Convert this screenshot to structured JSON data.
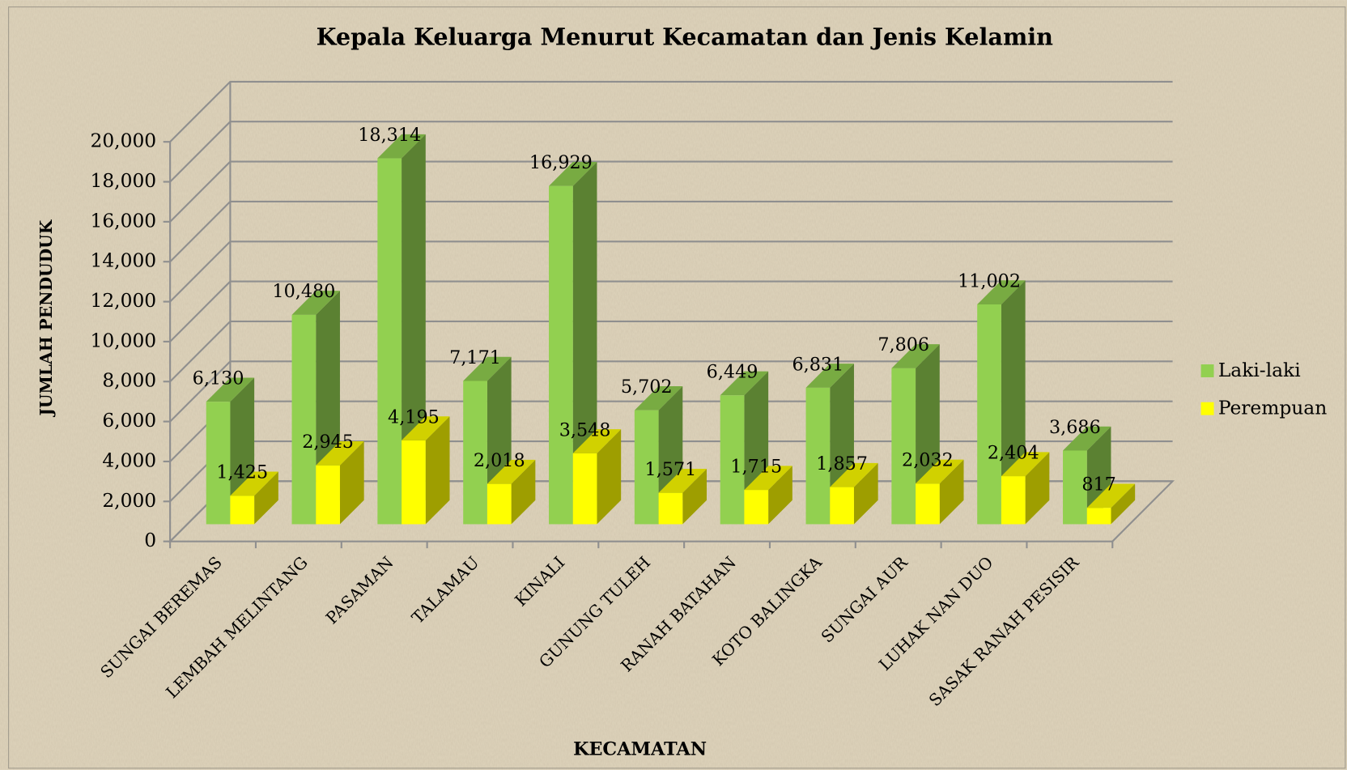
{
  "chart_data": {
    "type": "bar3d",
    "title": "Kepala Keluarga Menurut Kecamatan dan Jenis Kelamin",
    "x_label": "KECAMATAN",
    "y_label": "JUMLAH PENDUDUK",
    "categories": [
      "SUNGAI BEREMAS",
      "LEMBAH MELINTANG",
      "PASAMAN",
      "TALAMAU",
      "KINALI",
      "GUNUNG TULEH",
      "RANAH BATAHAN",
      "KOTO BALINGKA",
      "SUNGAI AUR",
      "LUHAK NAN DUO",
      "SASAK RANAH PESISIR"
    ],
    "series": [
      {
        "name": "Laki-laki",
        "color": "#92d050",
        "values": [
          6130,
          10480,
          18314,
          7171,
          16929,
          5702,
          6449,
          6831,
          7806,
          11002,
          3686
        ],
        "value_labels": [
          "6,130",
          "10,480",
          "18,314",
          "7,171",
          "16,929",
          "5,702",
          "6,449",
          "6,831",
          "7,806",
          "11,002",
          "3,686"
        ]
      },
      {
        "name": "Perempuan",
        "color": "#ffff00",
        "values": [
          1425,
          2945,
          4195,
          2018,
          3548,
          1571,
          1715,
          1857,
          2032,
          2404,
          817
        ],
        "value_labels": [
          "1,425",
          "2,945",
          "4,195",
          "2,018",
          "3,548",
          "1,571",
          "1,715",
          "1,857",
          "2,032",
          "2,404",
          "817"
        ]
      }
    ],
    "ylim": [
      0,
      20000
    ],
    "yticks": [
      0,
      {
        "value": 2000,
        "label": "2,000"
      },
      {
        "value": 4000,
        "label": "4,000"
      },
      {
        "value": 6000,
        "label": "6,000"
      },
      {
        "value": 8000,
        "label": "8,000"
      },
      {
        "value": 10000,
        "label": "10,000"
      },
      {
        "value": 12000,
        "label": "12,000"
      },
      {
        "value": 14000,
        "label": "14,000"
      },
      {
        "value": 16000,
        "label": "16,000"
      },
      {
        "value": 18000,
        "label": "18,000"
      },
      {
        "value": 20000,
        "label": "20,000"
      }
    ],
    "grid": true,
    "legend": "right"
  }
}
